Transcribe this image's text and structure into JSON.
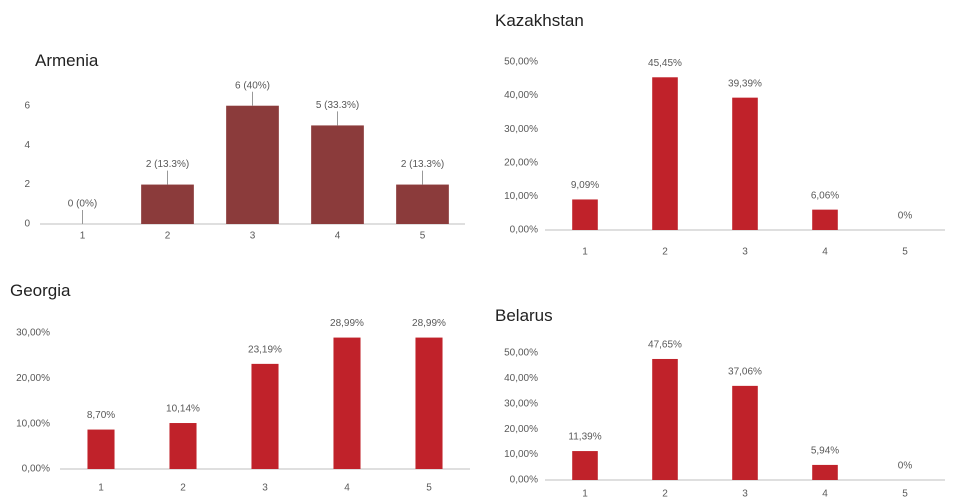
{
  "chart_data": [
    {
      "type": "bar",
      "title": "Armenia",
      "categories": [
        "1",
        "2",
        "3",
        "4",
        "5"
      ],
      "values": [
        0,
        2,
        6,
        5,
        2
      ],
      "value_labels": [
        "0 (0%)",
        "2 (13.3%)",
        "6 (40%)",
        "5 (33.3%)",
        "2 (13.3%)"
      ],
      "color": "#8b3b3b",
      "ylim": [
        0,
        7
      ],
      "yticks": [
        0,
        2,
        4,
        6
      ]
    },
    {
      "type": "bar",
      "title": "Kazakhstan",
      "categories": [
        "1",
        "2",
        "3",
        "4",
        "5"
      ],
      "values": [
        9.09,
        45.45,
        39.39,
        6.06,
        0
      ],
      "value_labels": [
        "9,09%",
        "45,45%",
        "39,39%",
        "6,06%",
        "0%"
      ],
      "color": "#c0222a",
      "ylim": [
        0,
        50
      ],
      "yticks": [
        {
          "value": 0,
          "label": "0,00%"
        },
        {
          "value": 10,
          "label": "10,00%"
        },
        {
          "value": 20,
          "label": "20,00%"
        },
        {
          "value": 30,
          "label": "30,00%"
        },
        {
          "value": 40,
          "label": "40,00%"
        },
        {
          "value": 50,
          "label": "50,00%"
        }
      ]
    },
    {
      "type": "bar",
      "title": "Georgia",
      "categories": [
        "1",
        "2",
        "3",
        "4",
        "5"
      ],
      "values": [
        8.7,
        10.14,
        23.19,
        28.99,
        28.99
      ],
      "value_labels": [
        "8,70%",
        "10,14%",
        "23,19%",
        "28,99%",
        "28,99%"
      ],
      "color": "#c0222a",
      "ylim": [
        0,
        30
      ],
      "yticks": [
        {
          "value": 0,
          "label": "0,00%"
        },
        {
          "value": 10,
          "label": "10,00%"
        },
        {
          "value": 20,
          "label": "20,00%"
        },
        {
          "value": 30,
          "label": "30,00%"
        }
      ]
    },
    {
      "type": "bar",
      "title": "Belarus",
      "categories": [
        "1",
        "2",
        "3",
        "4",
        "5"
      ],
      "values": [
        11.39,
        47.65,
        37.06,
        5.94,
        0
      ],
      "value_labels": [
        "11,39%",
        "47,65%",
        "37,06%",
        "5,94%",
        "0%"
      ],
      "color": "#c0222a",
      "ylim": [
        0,
        50
      ],
      "yticks": [
        {
          "value": 0,
          "label": "0,00%"
        },
        {
          "value": 10,
          "label": "10,00%"
        },
        {
          "value": 20,
          "label": "20,00%"
        },
        {
          "value": 30,
          "label": "30,00%"
        },
        {
          "value": 40,
          "label": "40,00%"
        },
        {
          "value": 50,
          "label": "50,00%"
        }
      ]
    }
  ]
}
